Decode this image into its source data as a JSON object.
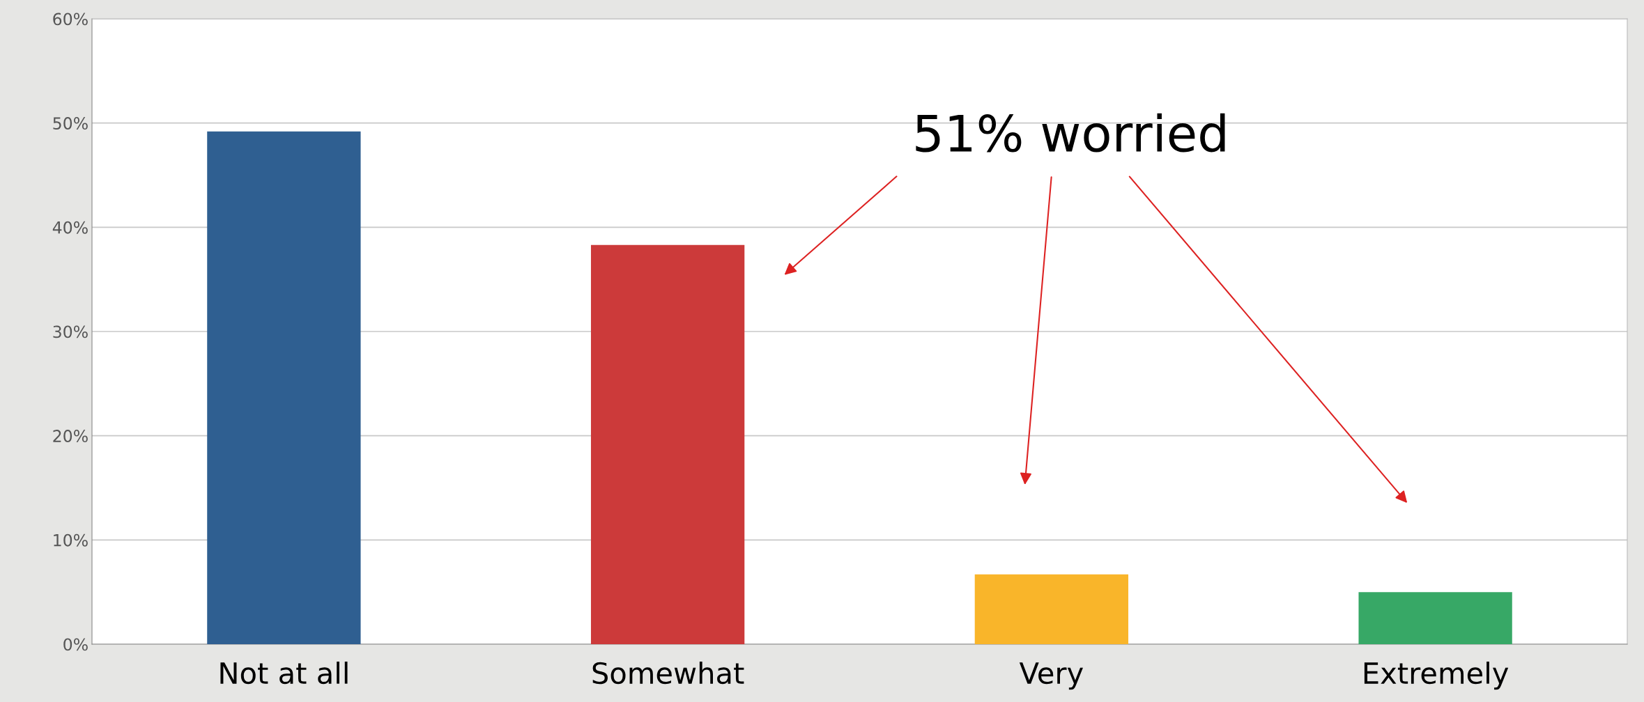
{
  "chart_data": {
    "type": "bar",
    "categories": [
      "Not at all",
      "Somewhat",
      "Very",
      "Extremely"
    ],
    "values": [
      49.2,
      38.3,
      6.7,
      5.0
    ],
    "colors": [
      "#2f5f91",
      "#cc3a3a",
      "#f9b52a",
      "#37a866"
    ],
    "ylim": [
      0,
      60
    ],
    "yticks": [
      {
        "value": 0,
        "label": "0%"
      },
      {
        "value": 10,
        "label": "10%"
      },
      {
        "value": 20,
        "label": "20%"
      },
      {
        "value": 30,
        "label": "30%"
      },
      {
        "value": 40,
        "label": "40%"
      },
      {
        "value": 50,
        "label": "50%"
      },
      {
        "value": 60,
        "label": "60%"
      }
    ],
    "grid": "y",
    "annotations": [
      "51% worried"
    ]
  }
}
